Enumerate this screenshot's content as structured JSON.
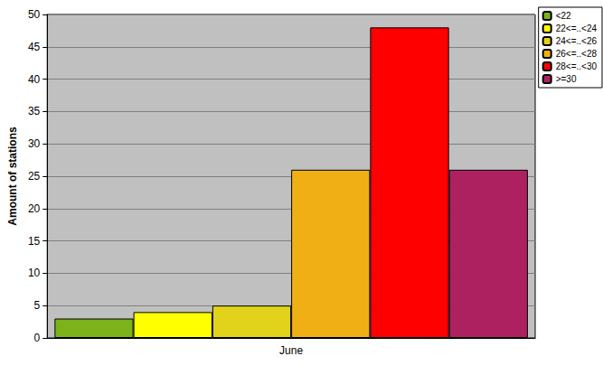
{
  "chart_data": {
    "type": "bar",
    "categories": [
      "June"
    ],
    "series": [
      {
        "name": "<22",
        "color": "#7cb31a",
        "values": [
          3
        ]
      },
      {
        "name": "22<=..<24",
        "color": "#ffff00",
        "values": [
          4
        ]
      },
      {
        "name": "24<=..<26",
        "color": "#e1d21c",
        "values": [
          5
        ]
      },
      {
        "name": "26<=..<28",
        "color": "#f0b015",
        "values": [
          26
        ]
      },
      {
        "name": "28<=..<30",
        "color": "#ff0000",
        "values": [
          48
        ]
      },
      {
        "name": ">=30",
        "color": "#ae2160",
        "values": [
          26
        ]
      }
    ],
    "ylabel": "Amount of stations",
    "ylim": [
      0,
      50
    ],
    "yticks": [
      0,
      5,
      10,
      15,
      20,
      25,
      30,
      35,
      40,
      45,
      50
    ],
    "grid": true,
    "legend": "top-right"
  }
}
